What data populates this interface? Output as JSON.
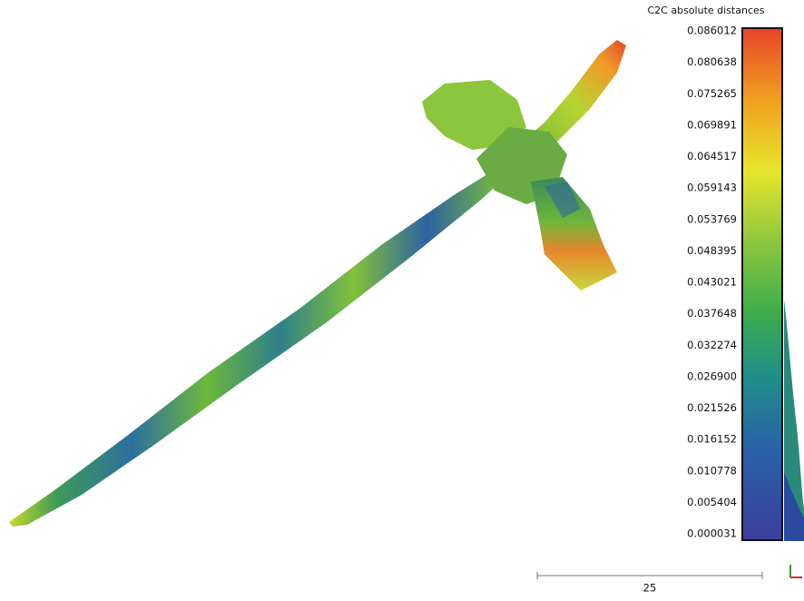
{
  "color_scale": {
    "title": "C2C absolute distances",
    "labels": [
      "0.086012",
      "0.080638",
      "0.075265",
      "0.069891",
      "0.064517",
      "0.059143",
      "0.053769",
      "0.048395",
      "0.043021",
      "0.037648",
      "0.032274",
      "0.026900",
      "0.021526",
      "0.016152",
      "0.010778",
      "0.005404",
      "0.000031"
    ]
  },
  "scale_bar": {
    "label": "25"
  }
}
